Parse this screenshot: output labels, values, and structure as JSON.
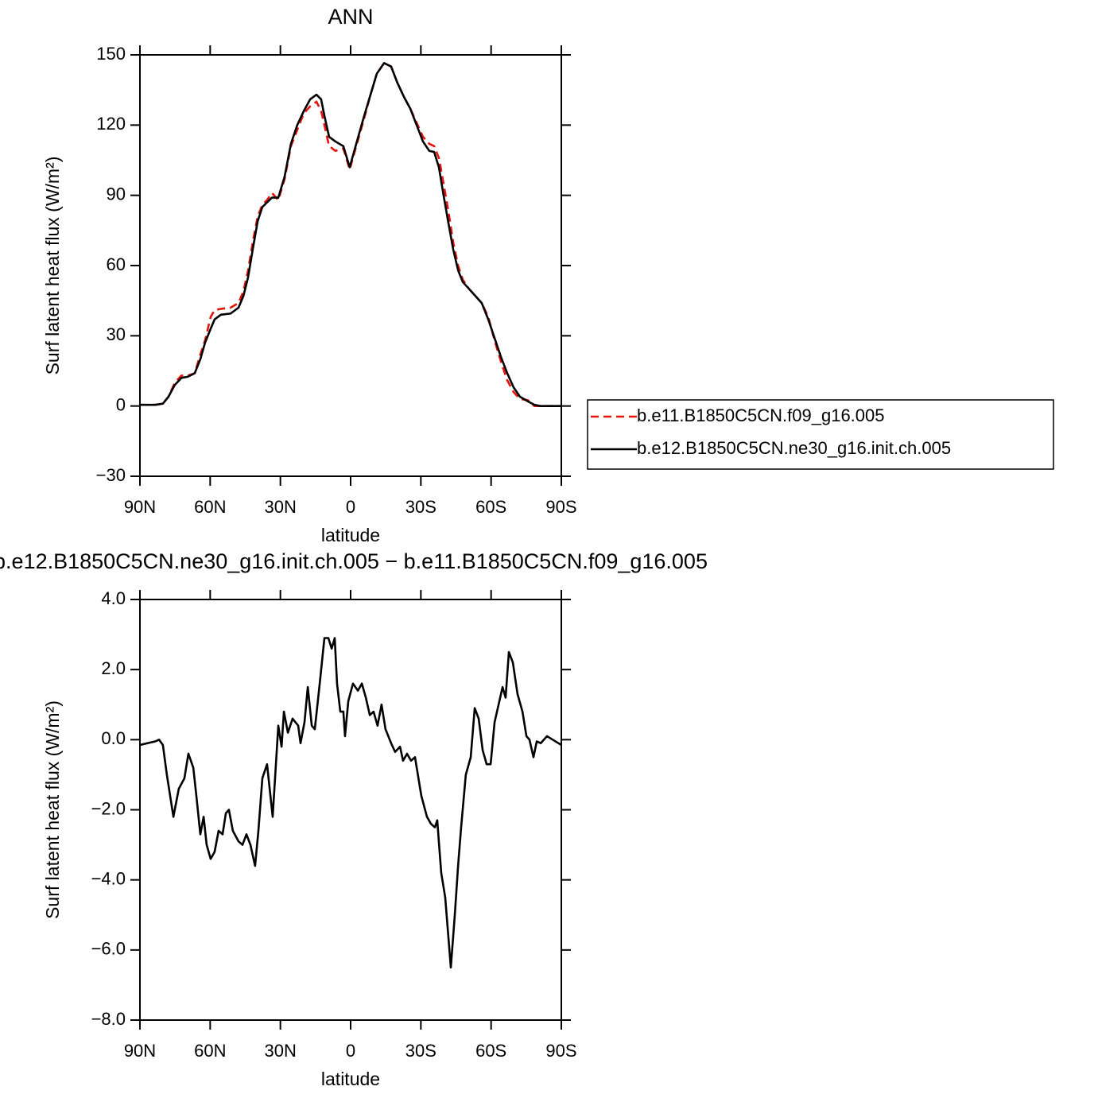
{
  "chart_data": [
    {
      "type": "line",
      "title": "ANN",
      "xlabel": "latitude",
      "ylabel": "Surf latent heat flux (W/m²)",
      "xlim": [
        90,
        -90
      ],
      "ylim": [
        -30,
        150
      ],
      "xticks": [
        {
          "value": 90,
          "label": "90N"
        },
        {
          "value": 60,
          "label": "60N"
        },
        {
          "value": 30,
          "label": "30N"
        },
        0,
        {
          "value": -30,
          "label": "30S"
        },
        {
          "value": -60,
          "label": "60S"
        },
        {
          "value": -90,
          "label": "90S"
        }
      ],
      "yticks": [
        {
          "value": -30,
          "label": "−30"
        },
        0,
        30,
        60,
        90,
        120,
        150
      ],
      "legend": "right",
      "x": [
        90,
        83.5,
        80.2,
        77.8,
        75.1,
        72.3,
        69.6,
        66.6,
        64.2,
        62.2,
        59.8,
        58.1,
        55.4,
        51.3,
        47.9,
        45.8,
        43.8,
        41.8,
        39.7,
        37.7,
        35.7,
        33.6,
        30.9,
        28.2,
        25.5,
        22.8,
        20.0,
        17.3,
        14.6,
        12.6,
        11.2,
        9.2,
        6.5,
        3.1,
        0.4,
        -2.4,
        -5.8,
        -8.5,
        -11.2,
        -14.3,
        -17.3,
        -20.0,
        -22.8,
        -25.5,
        -28.2,
        -30.9,
        -33.6,
        -35.7,
        -37.7,
        -39.7,
        -41.8,
        -43.8,
        -45.9,
        -47.9,
        -50.6,
        -53.3,
        -56.0,
        -58.8,
        -61.5,
        -64.2,
        -66.9,
        -69.6,
        -72.3,
        -75.7,
        -78.5,
        -81.2,
        -90
      ],
      "series": [
        {
          "name": "b.e11.B1850C5CN.f09_g16.005",
          "color": "#e8120c",
          "linestyle": "dashed",
          "values": [
            0.5,
            0.5,
            1,
            4,
            10,
            13,
            13,
            14,
            22,
            28,
            38,
            41,
            41.5,
            42,
            44,
            49,
            58,
            70,
            81,
            86,
            88,
            91,
            88,
            97,
            111,
            118,
            125,
            128,
            130,
            126,
            120,
            111,
            109,
            110,
            101,
            111,
            123,
            133,
            142,
            146.5,
            145,
            138,
            132,
            127,
            121,
            115,
            112,
            111,
            106,
            95,
            83,
            70,
            60,
            54,
            50,
            47,
            44,
            38,
            28,
            19,
            11,
            6,
            3,
            2.5,
            0,
            0,
            0
          ]
        },
        {
          "name": "b.e12.B1850C5CN.ne30_g16.init.ch.005",
          "color": "#000000",
          "linestyle": "solid",
          "values": [
            0.5,
            0.5,
            1,
            4,
            9,
            12,
            12.5,
            14,
            20,
            27,
            33,
            37,
            39,
            39.5,
            42,
            47,
            55,
            67,
            79,
            85,
            87,
            89,
            89,
            98,
            112,
            120,
            126,
            131,
            133,
            131,
            124,
            115,
            113,
            111,
            102,
            112,
            124,
            133,
            142,
            146.5,
            145,
            138,
            132,
            127,
            120,
            113,
            109,
            108.5,
            102,
            90,
            78,
            67,
            58,
            53,
            50,
            47,
            44,
            37,
            29,
            21,
            14,
            8,
            4,
            2,
            0.5,
            0,
            0
          ]
        }
      ]
    },
    {
      "type": "line",
      "title": "b.e12.B1850C5CN.ne30_g16.init.ch.005 − b.e11.B1850C5CN.f09_g16.005",
      "xlabel": "latitude",
      "ylabel": "Surf latent heat flux (W/m²)",
      "xlim": [
        90,
        -90
      ],
      "ylim": [
        -8,
        4
      ],
      "xticks": [
        {
          "value": 90,
          "label": "90N"
        },
        {
          "value": 60,
          "label": "60N"
        },
        {
          "value": 30,
          "label": "30N"
        },
        0,
        {
          "value": -30,
          "label": "30S"
        },
        {
          "value": -60,
          "label": "60S"
        },
        {
          "value": -90,
          "label": "90S"
        }
      ],
      "yticks": [
        {
          "value": -8,
          "label": "−8.0"
        },
        {
          "value": -6,
          "label": "−6.0"
        },
        {
          "value": -4,
          "label": "−4.0"
        },
        {
          "value": -2,
          "label": "−2.0"
        },
        {
          "value": 0,
          "label": "0.0"
        },
        {
          "value": 2,
          "label": "2.0"
        },
        {
          "value": 4,
          "label": "4.0"
        }
      ],
      "x": [
        90,
        83.5,
        81.8,
        80.2,
        78.5,
        75.7,
        73.4,
        71.0,
        69.3,
        67.2,
        65.9,
        64.2,
        62.8,
        61.5,
        59.8,
        58.1,
        56.4,
        54.7,
        53.3,
        52.0,
        50.3,
        47.9,
        46.2,
        44.5,
        42.8,
        40.8,
        39.4,
        37.7,
        35.7,
        33.3,
        30.9,
        29.5,
        28.5,
        26.8,
        24.8,
        22.4,
        21.4,
        19.7,
        18.3,
        16.6,
        15.3,
        13.2,
        11.2,
        9.5,
        8.1,
        6.8,
        5.8,
        4.4,
        3.1,
        2.4,
        1.0,
        -1.0,
        -3.1,
        -4.8,
        -6.5,
        -8.2,
        -9.8,
        -11.5,
        -13.2,
        -14.9,
        -17.3,
        -19.0,
        -21.1,
        -22.4,
        -24.1,
        -25.8,
        -27.5,
        -30.2,
        -32.6,
        -34.3,
        -36.0,
        -37.0,
        -38.7,
        -40.4,
        -42.8,
        -44.5,
        -45.9,
        -47.2,
        -49.2,
        -51.3,
        -53.0,
        -54.7,
        -56.4,
        -58.1,
        -59.8,
        -61.5,
        -63.2,
        -64.9,
        -66.2,
        -67.6,
        -69.3,
        -71.3,
        -73.4,
        -75.1,
        -76.4,
        -78.1,
        -79.5,
        -81.2,
        -83.9,
        -86.3,
        -90
      ],
      "series": [
        {
          "color": "#000000",
          "linestyle": "solid",
          "values": [
            -0.15,
            -0.05,
            0,
            -0.15,
            -1.0,
            -2.2,
            -1.4,
            -1.1,
            -0.4,
            -0.8,
            -1.6,
            -2.7,
            -2.2,
            -3.0,
            -3.4,
            -3.2,
            -2.6,
            -2.7,
            -2.1,
            -2.0,
            -2.6,
            -2.9,
            -3.0,
            -2.7,
            -3.0,
            -3.6,
            -2.6,
            -1.1,
            -0.7,
            -2.2,
            0.4,
            -0.2,
            0.8,
            0.2,
            0.6,
            0.4,
            -0.1,
            0.5,
            1.5,
            0.4,
            0.3,
            1.6,
            2.9,
            2.9,
            2.6,
            2.9,
            1.6,
            0.8,
            0.8,
            0.1,
            1.1,
            1.6,
            1.4,
            1.6,
            1.2,
            0.7,
            0.8,
            0.4,
            1.0,
            0.3,
            -0.1,
            -0.35,
            -0.2,
            -0.6,
            -0.4,
            -0.6,
            -0.5,
            -1.6,
            -2.2,
            -2.4,
            -2.5,
            -2.3,
            -3.8,
            -4.5,
            -6.5,
            -5.0,
            -3.6,
            -2.5,
            -1.0,
            -0.5,
            0.9,
            0.6,
            -0.3,
            -0.7,
            -0.7,
            0.5,
            1.0,
            1.5,
            1.2,
            2.5,
            2.2,
            1.3,
            0.8,
            0.1,
            0.0,
            -0.5,
            -0.05,
            -0.1,
            0.1,
            0.0,
            -0.15
          ]
        }
      ]
    }
  ]
}
